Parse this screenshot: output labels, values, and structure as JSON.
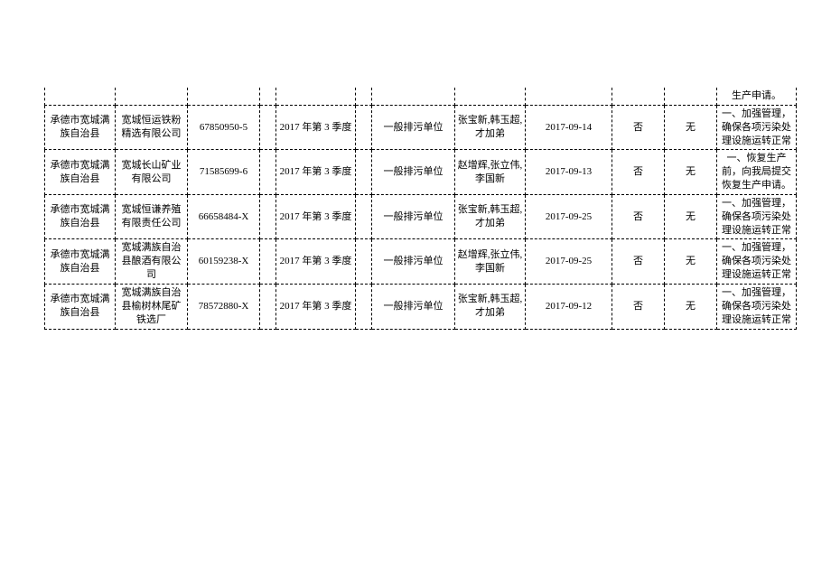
{
  "table": {
    "stub_last_cell": "生产申请。",
    "rows": [
      {
        "region": "承德市宽城满族自治县",
        "company": "宽城恒运铁粉精选有限公司",
        "code": "67850950-5",
        "blank1": "",
        "period": "2017 年第 3 季度",
        "blank2": "",
        "type": "一般排污单位",
        "people": "张宝新,韩玉超,才加弟",
        "date": "2017-09-14",
        "flag": "否",
        "none": "无",
        "note": "一、加强管理，确保各项污染处理设施运转正常"
      },
      {
        "region": "承德市宽城满族自治县",
        "company": "宽城长山矿业有限公司",
        "code": "71585699-6",
        "blank1": "",
        "period": "2017 年第 3 季度",
        "blank2": "",
        "type": "一般排污单位",
        "people": "赵增辉,张立伟,李国新",
        "date": "2017-09-13",
        "flag": "否",
        "none": "无",
        "note": "一、恢复生产前，向我局提交恢复生产申请。"
      },
      {
        "region": "承德市宽城满族自治县",
        "company": "宽城恒谦养殖有限责任公司",
        "code": "66658484-X",
        "blank1": "",
        "period": "2017 年第 3 季度",
        "blank2": "",
        "type": "一般排污单位",
        "people": "张宝新,韩玉超,才加弟",
        "date": "2017-09-25",
        "flag": "否",
        "none": "无",
        "note": "一、加强管理，确保各项污染处理设施运转正常"
      },
      {
        "region": "承德市宽城满族自治县",
        "company": "宽城满族自治县酿酒有限公司",
        "code": "60159238-X",
        "blank1": "",
        "period": "2017 年第 3 季度",
        "blank2": "",
        "type": "一般排污单位",
        "people": "赵增辉,张立伟,李国新",
        "date": "2017-09-25",
        "flag": "否",
        "none": "无",
        "note": "一、加强管理，确保各项污染处理设施运转正常"
      },
      {
        "region": "承德市宽城满族自治县",
        "company": "宽城满族自治县榆树林尾矿铁选厂",
        "code": "78572880-X",
        "blank1": "",
        "period": "2017 年第 3 季度",
        "blank2": "",
        "type": "一般排污单位",
        "people": "张宝新,韩玉超,才加弟",
        "date": "2017-09-12",
        "flag": "否",
        "none": "无",
        "note": "一、加强管理，确保各项污染处理设施运转正常"
      }
    ]
  }
}
